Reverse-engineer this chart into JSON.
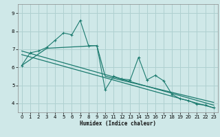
{
  "xlabel": "Humidex (Indice chaleur)",
  "background_color": "#cfe8e8",
  "grid_color": "#afd0d0",
  "line_color": "#1a7a6e",
  "xlim": [
    -0.5,
    23.5
  ],
  "ylim": [
    3.5,
    9.5
  ],
  "xticks": [
    0,
    1,
    2,
    3,
    4,
    5,
    6,
    7,
    8,
    9,
    10,
    11,
    12,
    13,
    14,
    15,
    16,
    17,
    18,
    19,
    20,
    21,
    22,
    23
  ],
  "yticks": [
    4,
    5,
    6,
    7,
    8,
    9
  ],
  "series1_x": [
    0,
    1,
    2,
    3,
    4,
    5,
    6,
    7,
    8,
    9,
    10,
    11,
    12,
    13,
    14,
    15,
    16,
    17,
    18,
    19,
    20,
    21,
    22,
    23
  ],
  "series1_y": [
    6.1,
    6.8,
    6.9,
    7.1,
    7.5,
    7.9,
    7.8,
    8.6,
    7.2,
    7.2,
    4.75,
    5.5,
    5.35,
    5.3,
    6.55,
    5.3,
    5.55,
    5.25,
    4.5,
    4.25,
    4.15,
    3.95,
    3.9,
    3.75
  ],
  "series2_x": [
    0,
    23
  ],
  "series2_y": [
    6.9,
    3.9
  ],
  "series3_x": [
    0,
    23
  ],
  "series3_y": [
    6.7,
    3.75
  ],
  "series4_x": [
    0,
    3,
    9,
    10,
    23
  ],
  "series4_y": [
    6.1,
    7.05,
    7.2,
    5.5,
    4.05
  ]
}
